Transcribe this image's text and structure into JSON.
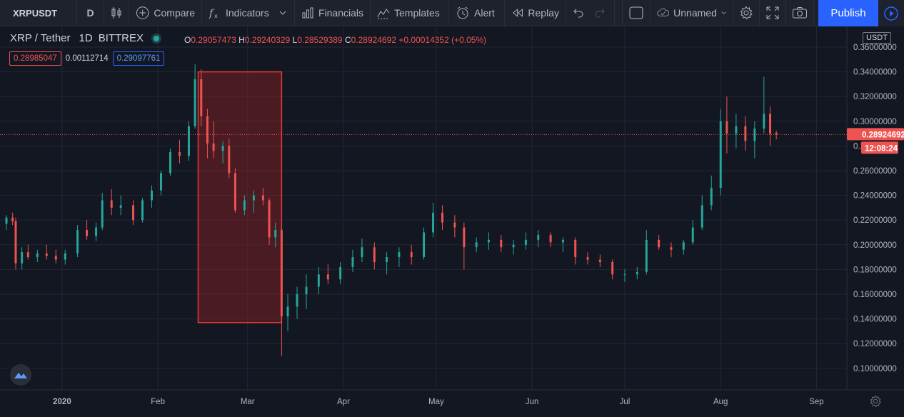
{
  "toolbar": {
    "symbol": "XRPUSDT",
    "interval": "D",
    "compare": "Compare",
    "indicators": "Indicators",
    "financials": "Financials",
    "templates": "Templates",
    "alert": "Alert",
    "replay": "Replay",
    "layout_name": "Unnamed",
    "publish": "Publish"
  },
  "legend": {
    "title": "XRP / Tether",
    "interval": "1D",
    "exchange": "BITTREX",
    "o_label": "O",
    "o_value": "0.29057473",
    "h_label": "H",
    "h_value": "0.29240329",
    "l_label": "L",
    "l_value": "0.28529389",
    "c_label": "C",
    "c_value": "0.28924692",
    "change": "+0.00014352 (+0.05%)"
  },
  "indicator": {
    "bid": "0.28985047",
    "spread": "0.00112714",
    "ask": "0.29097761"
  },
  "price_axis": {
    "currency": "USDT",
    "ticks": [
      "0.36000000",
      "0.34000000",
      "0.32000000",
      "0.30000000",
      "0.28000000",
      "0.26000000",
      "0.24000000",
      "0.22000000",
      "0.20000000",
      "0.18000000",
      "0.16000000",
      "0.14000000",
      "0.12000000",
      "0.10000000"
    ],
    "current_price": "0.28924692",
    "countdown": "12:08:24"
  },
  "time_axis": {
    "labels": [
      "2020",
      "Feb",
      "Mar",
      "Apr",
      "May",
      "Jun",
      "Jul",
      "Aug",
      "Sep"
    ]
  },
  "colors": {
    "up": "#26a69a",
    "down": "#ef5350",
    "background": "#131722",
    "grid": "#232734",
    "highlight_fill": "rgba(178,34,34,0.35)",
    "highlight_border": "#e53935"
  },
  "icons": [
    "candles-icon",
    "compare-plus-icon",
    "indicators-fx-icon",
    "financials-icon",
    "templates-icon",
    "alert-clock-icon",
    "replay-icon",
    "undo-icon",
    "redo-icon",
    "fullscreen-toggle-icon",
    "cloud-icon",
    "settings-gear-icon",
    "expand-icon",
    "camera-icon",
    "play-circle-icon",
    "tradingview-logo-icon"
  ],
  "chart_data": {
    "type": "candlestick",
    "symbol": "XRP / Tether",
    "timeframe": "1D",
    "ylim": [
      0.09,
      0.365
    ],
    "highlight_range": {
      "from": "2020-02-14",
      "to": "2020-03-12",
      "price_low": 0.137,
      "price_high": 0.34
    },
    "candles": [
      [
        "2019-12-14",
        0.217,
        0.224,
        0.212,
        0.222
      ],
      [
        "2019-12-16",
        0.222,
        0.226,
        0.216,
        0.219
      ],
      [
        "2019-12-17",
        0.219,
        0.222,
        0.18,
        0.185
      ],
      [
        "2019-12-19",
        0.185,
        0.198,
        0.18,
        0.194
      ],
      [
        "2019-12-21",
        0.194,
        0.2,
        0.188,
        0.19
      ],
      [
        "2019-12-24",
        0.19,
        0.196,
        0.186,
        0.193
      ],
      [
        "2019-12-27",
        0.193,
        0.2,
        0.188,
        0.191
      ],
      [
        "2019-12-30",
        0.191,
        0.196,
        0.185,
        0.188
      ],
      [
        "2020-01-02",
        0.188,
        0.196,
        0.184,
        0.193
      ],
      [
        "2020-01-06",
        0.193,
        0.216,
        0.19,
        0.212
      ],
      [
        "2020-01-09",
        0.212,
        0.22,
        0.204,
        0.207
      ],
      [
        "2020-01-12",
        0.207,
        0.218,
        0.203,
        0.214
      ],
      [
        "2020-01-14",
        0.214,
        0.242,
        0.212,
        0.236
      ],
      [
        "2020-01-17",
        0.236,
        0.245,
        0.224,
        0.23
      ],
      [
        "2020-01-20",
        0.23,
        0.24,
        0.224,
        0.232
      ],
      [
        "2020-01-24",
        0.232,
        0.236,
        0.216,
        0.22
      ],
      [
        "2020-01-27",
        0.22,
        0.238,
        0.218,
        0.236
      ],
      [
        "2020-01-30",
        0.236,
        0.248,
        0.23,
        0.244
      ],
      [
        "2020-02-02",
        0.244,
        0.26,
        0.24,
        0.258
      ],
      [
        "2020-02-05",
        0.258,
        0.278,
        0.256,
        0.275
      ],
      [
        "2020-02-08",
        0.275,
        0.285,
        0.266,
        0.272
      ],
      [
        "2020-02-11",
        0.272,
        0.3,
        0.268,
        0.296
      ],
      [
        "2020-02-13",
        0.296,
        0.346,
        0.294,
        0.334
      ],
      [
        "2020-02-15",
        0.334,
        0.342,
        0.296,
        0.304
      ],
      [
        "2020-02-17",
        0.304,
        0.31,
        0.27,
        0.282
      ],
      [
        "2020-02-19",
        0.282,
        0.3,
        0.27,
        0.276
      ],
      [
        "2020-02-22",
        0.276,
        0.284,
        0.266,
        0.28
      ],
      [
        "2020-02-24",
        0.28,
        0.286,
        0.254,
        0.258
      ],
      [
        "2020-02-26",
        0.258,
        0.262,
        0.226,
        0.228
      ],
      [
        "2020-02-29",
        0.228,
        0.24,
        0.224,
        0.236
      ],
      [
        "2020-03-03",
        0.236,
        0.244,
        0.226,
        0.24
      ],
      [
        "2020-03-06",
        0.24,
        0.246,
        0.232,
        0.236
      ],
      [
        "2020-03-08",
        0.236,
        0.238,
        0.2,
        0.206
      ],
      [
        "2020-03-10",
        0.206,
        0.218,
        0.198,
        0.212
      ],
      [
        "2020-03-12",
        0.212,
        0.214,
        0.11,
        0.142
      ],
      [
        "2020-03-14",
        0.142,
        0.16,
        0.13,
        0.15
      ],
      [
        "2020-03-17",
        0.15,
        0.166,
        0.14,
        0.16
      ],
      [
        "2020-03-20",
        0.16,
        0.176,
        0.148,
        0.166
      ],
      [
        "2020-03-24",
        0.166,
        0.182,
        0.16,
        0.176
      ],
      [
        "2020-03-27",
        0.176,
        0.184,
        0.168,
        0.172
      ],
      [
        "2020-03-31",
        0.172,
        0.186,
        0.168,
        0.182
      ],
      [
        "2020-04-04",
        0.182,
        0.196,
        0.178,
        0.19
      ],
      [
        "2020-04-07",
        0.19,
        0.205,
        0.186,
        0.198
      ],
      [
        "2020-04-11",
        0.198,
        0.202,
        0.18,
        0.186
      ],
      [
        "2020-04-15",
        0.186,
        0.194,
        0.176,
        0.19
      ],
      [
        "2020-04-19",
        0.19,
        0.198,
        0.182,
        0.194
      ],
      [
        "2020-04-23",
        0.194,
        0.2,
        0.184,
        0.19
      ],
      [
        "2020-04-27",
        0.19,
        0.214,
        0.188,
        0.21
      ],
      [
        "2020-04-30",
        0.21,
        0.234,
        0.206,
        0.226
      ],
      [
        "2020-05-03",
        0.226,
        0.232,
        0.212,
        0.218
      ],
      [
        "2020-05-07",
        0.218,
        0.224,
        0.206,
        0.214
      ],
      [
        "2020-05-10",
        0.214,
        0.218,
        0.18,
        0.198
      ],
      [
        "2020-05-14",
        0.198,
        0.206,
        0.194,
        0.202
      ],
      [
        "2020-05-18",
        0.202,
        0.21,
        0.196,
        0.204
      ],
      [
        "2020-05-22",
        0.204,
        0.208,
        0.194,
        0.198
      ],
      [
        "2020-05-26",
        0.198,
        0.204,
        0.192,
        0.2
      ],
      [
        "2020-05-30",
        0.2,
        0.21,
        0.196,
        0.204
      ],
      [
        "2020-06-03",
        0.204,
        0.212,
        0.198,
        0.208
      ],
      [
        "2020-06-07",
        0.208,
        0.21,
        0.198,
        0.202
      ],
      [
        "2020-06-11",
        0.202,
        0.206,
        0.194,
        0.204
      ],
      [
        "2020-06-15",
        0.204,
        0.206,
        0.184,
        0.19
      ],
      [
        "2020-06-19",
        0.19,
        0.194,
        0.184,
        0.188
      ],
      [
        "2020-06-23",
        0.188,
        0.192,
        0.182,
        0.186
      ],
      [
        "2020-06-27",
        0.186,
        0.188,
        0.172,
        0.176
      ],
      [
        "2020-07-01",
        0.176,
        0.18,
        0.17,
        0.176
      ],
      [
        "2020-07-05",
        0.176,
        0.182,
        0.172,
        0.178
      ],
      [
        "2020-07-08",
        0.178,
        0.212,
        0.176,
        0.204
      ],
      [
        "2020-07-12",
        0.204,
        0.208,
        0.196,
        0.198
      ],
      [
        "2020-07-16",
        0.198,
        0.202,
        0.19,
        0.196
      ],
      [
        "2020-07-20",
        0.196,
        0.204,
        0.192,
        0.202
      ],
      [
        "2020-07-23",
        0.202,
        0.22,
        0.2,
        0.214
      ],
      [
        "2020-07-26",
        0.214,
        0.24,
        0.212,
        0.232
      ],
      [
        "2020-07-29",
        0.232,
        0.256,
        0.228,
        0.246
      ],
      [
        "2020-08-01",
        0.246,
        0.31,
        0.24,
        0.3
      ],
      [
        "2020-08-03",
        0.3,
        0.32,
        0.274,
        0.29
      ],
      [
        "2020-08-06",
        0.29,
        0.306,
        0.278,
        0.296
      ],
      [
        "2020-08-09",
        0.296,
        0.304,
        0.276,
        0.284
      ],
      [
        "2020-08-12",
        0.284,
        0.3,
        0.27,
        0.294
      ],
      [
        "2020-08-15",
        0.294,
        0.336,
        0.29,
        0.306
      ],
      [
        "2020-08-17",
        0.306,
        0.312,
        0.28,
        0.29
      ],
      [
        "2020-08-19",
        0.2906,
        0.2924,
        0.2853,
        0.2892
      ]
    ]
  }
}
